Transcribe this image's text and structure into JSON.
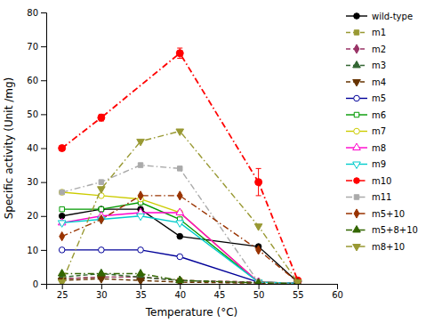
{
  "chart_data": {
    "type": "line",
    "xlabel": "Temperature (°C)",
    "ylabel": "Specific activity (Unit /mg)",
    "xlim": [
      23,
      60
    ],
    "ylim": [
      0,
      80
    ],
    "xticks": [
      25,
      30,
      35,
      40,
      45,
      50,
      55,
      60
    ],
    "yticks": [
      0,
      10,
      20,
      30,
      40,
      50,
      60,
      70,
      80
    ],
    "grid": false,
    "legend": "right",
    "series": [
      {
        "name": "wild-type",
        "color": "#000000",
        "marker": "circle",
        "line_style": "solid",
        "x": [
          25,
          30,
          35,
          40,
          50,
          55
        ],
        "values": [
          20,
          22,
          22,
          14,
          11,
          0.5
        ]
      },
      {
        "name": "m1",
        "color": "#999933",
        "marker": "square",
        "line_style": "dashed",
        "x": [
          25,
          30,
          35,
          40,
          50,
          55
        ],
        "values": [
          1.5,
          2,
          2,
          1,
          0.5,
          0.2
        ]
      },
      {
        "name": "m2",
        "color": "#993366",
        "marker": "diamond",
        "line_style": "dashed",
        "x": [
          25,
          30,
          35,
          40,
          50,
          55
        ],
        "values": [
          1.5,
          2,
          2,
          1,
          0.5,
          0.2
        ]
      },
      {
        "name": "m3",
        "color": "#336633",
        "marker": "triangle-up",
        "line_style": "dashed",
        "x": [
          25,
          30,
          35,
          40,
          50,
          55
        ],
        "values": [
          2,
          3,
          2,
          1,
          0.3,
          0.1
        ]
      },
      {
        "name": "m4",
        "color": "#663300",
        "marker": "triangle-down",
        "line_style": "dashed",
        "x": [
          25,
          30,
          35,
          40,
          50,
          55
        ],
        "values": [
          1,
          1.5,
          1,
          0.5,
          0.2,
          0.1
        ]
      },
      {
        "name": "m5",
        "color": "#000099",
        "marker": "circle-open",
        "line_style": "solid",
        "x": [
          25,
          30,
          35,
          40,
          50,
          55
        ],
        "values": [
          10,
          10,
          10,
          8,
          0.5,
          0.2
        ]
      },
      {
        "name": "m6",
        "color": "#009900",
        "marker": "square-open",
        "line_style": "solid",
        "x": [
          25,
          30,
          35,
          40,
          50,
          55
        ],
        "values": [
          22,
          22,
          24,
          19,
          0.5,
          0.2
        ]
      },
      {
        "name": "m7",
        "color": "#cccc00",
        "marker": "circle-open",
        "line_style": "solid",
        "x": [
          25,
          30,
          35,
          40,
          50,
          55
        ],
        "values": [
          27,
          26,
          25,
          21,
          0.5,
          0.2
        ]
      },
      {
        "name": "m8",
        "color": "#ff00cc",
        "marker": "triangle-up-open",
        "line_style": "solid",
        "x": [
          25,
          30,
          35,
          40,
          50,
          55
        ],
        "values": [
          18,
          20,
          21,
          21,
          0.5,
          0.2
        ]
      },
      {
        "name": "m9",
        "color": "#00cccc",
        "marker": "triangle-down-open",
        "line_style": "solid",
        "x": [
          25,
          30,
          35,
          40,
          50,
          55
        ],
        "values": [
          18,
          19,
          20,
          18,
          0.5,
          0.2
        ]
      },
      {
        "name": "m10",
        "color": "#ff0000",
        "marker": "circle",
        "line_style": "dashdot",
        "x": [
          25,
          30,
          40,
          50,
          55
        ],
        "values": [
          40,
          49,
          68,
          30,
          1
        ],
        "errors": [
          0,
          1,
          1.5,
          4,
          0
        ]
      },
      {
        "name": "m11",
        "color": "#aaaaaa",
        "marker": "square",
        "line_style": "dashdot",
        "x": [
          25,
          30,
          35,
          40,
          50,
          55
        ],
        "values": [
          27,
          30,
          35,
          34,
          0.5,
          0.2
        ]
      },
      {
        "name": "m5+10",
        "color": "#993300",
        "marker": "diamond",
        "line_style": "dashdot",
        "x": [
          25,
          30,
          35,
          40,
          50,
          55
        ],
        "values": [
          14,
          19,
          26,
          26,
          10,
          0.5
        ]
      },
      {
        "name": "m5+8+10",
        "color": "#336600",
        "marker": "triangle-up",
        "line_style": "dashdot",
        "x": [
          25,
          30,
          35,
          40,
          50,
          55
        ],
        "values": [
          3,
          3,
          3,
          1,
          0.3,
          0.1
        ]
      },
      {
        "name": "m8+10",
        "color": "#999933",
        "marker": "triangle-down",
        "line_style": "dashdot",
        "x": [
          25,
          30,
          35,
          40,
          50,
          55
        ],
        "values": [
          0.5,
          28,
          42,
          45,
          17,
          0.5
        ]
      }
    ]
  }
}
